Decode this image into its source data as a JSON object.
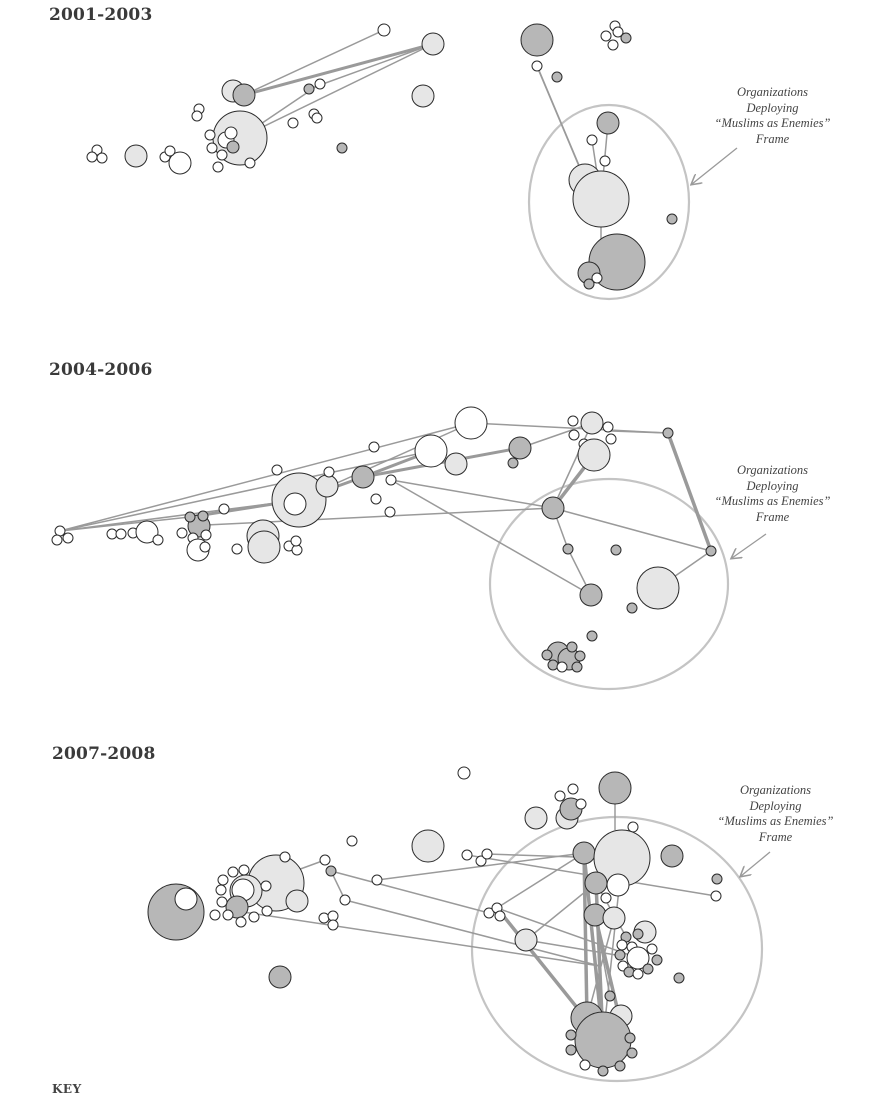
{
  "panels": [
    {
      "period": "2001-2003",
      "frame_label": [
        "Organizations",
        "Deploying",
        "“Muslims as Enemies”",
        "Frame"
      ]
    },
    {
      "period": "2004-2006",
      "frame_label": [
        "Organizations",
        "Deploying",
        "“Muslims as Enemies”",
        "Frame"
      ]
    },
    {
      "period": "2007-2008",
      "frame_label": [
        "Organizations",
        "Deploying",
        "“Muslims as Enemies”",
        "Frame"
      ]
    }
  ],
  "key_label": "KEY",
  "colors": {
    "node_light": "#e6e6e6",
    "node_dark": "#b7b7b7",
    "node_white": "#ffffff",
    "node_stroke": "#2b2b2b",
    "edge": "#9a9a9a",
    "frame_ellipse": "#c4c4c4",
    "arrow": "#9a9a9a"
  }
}
